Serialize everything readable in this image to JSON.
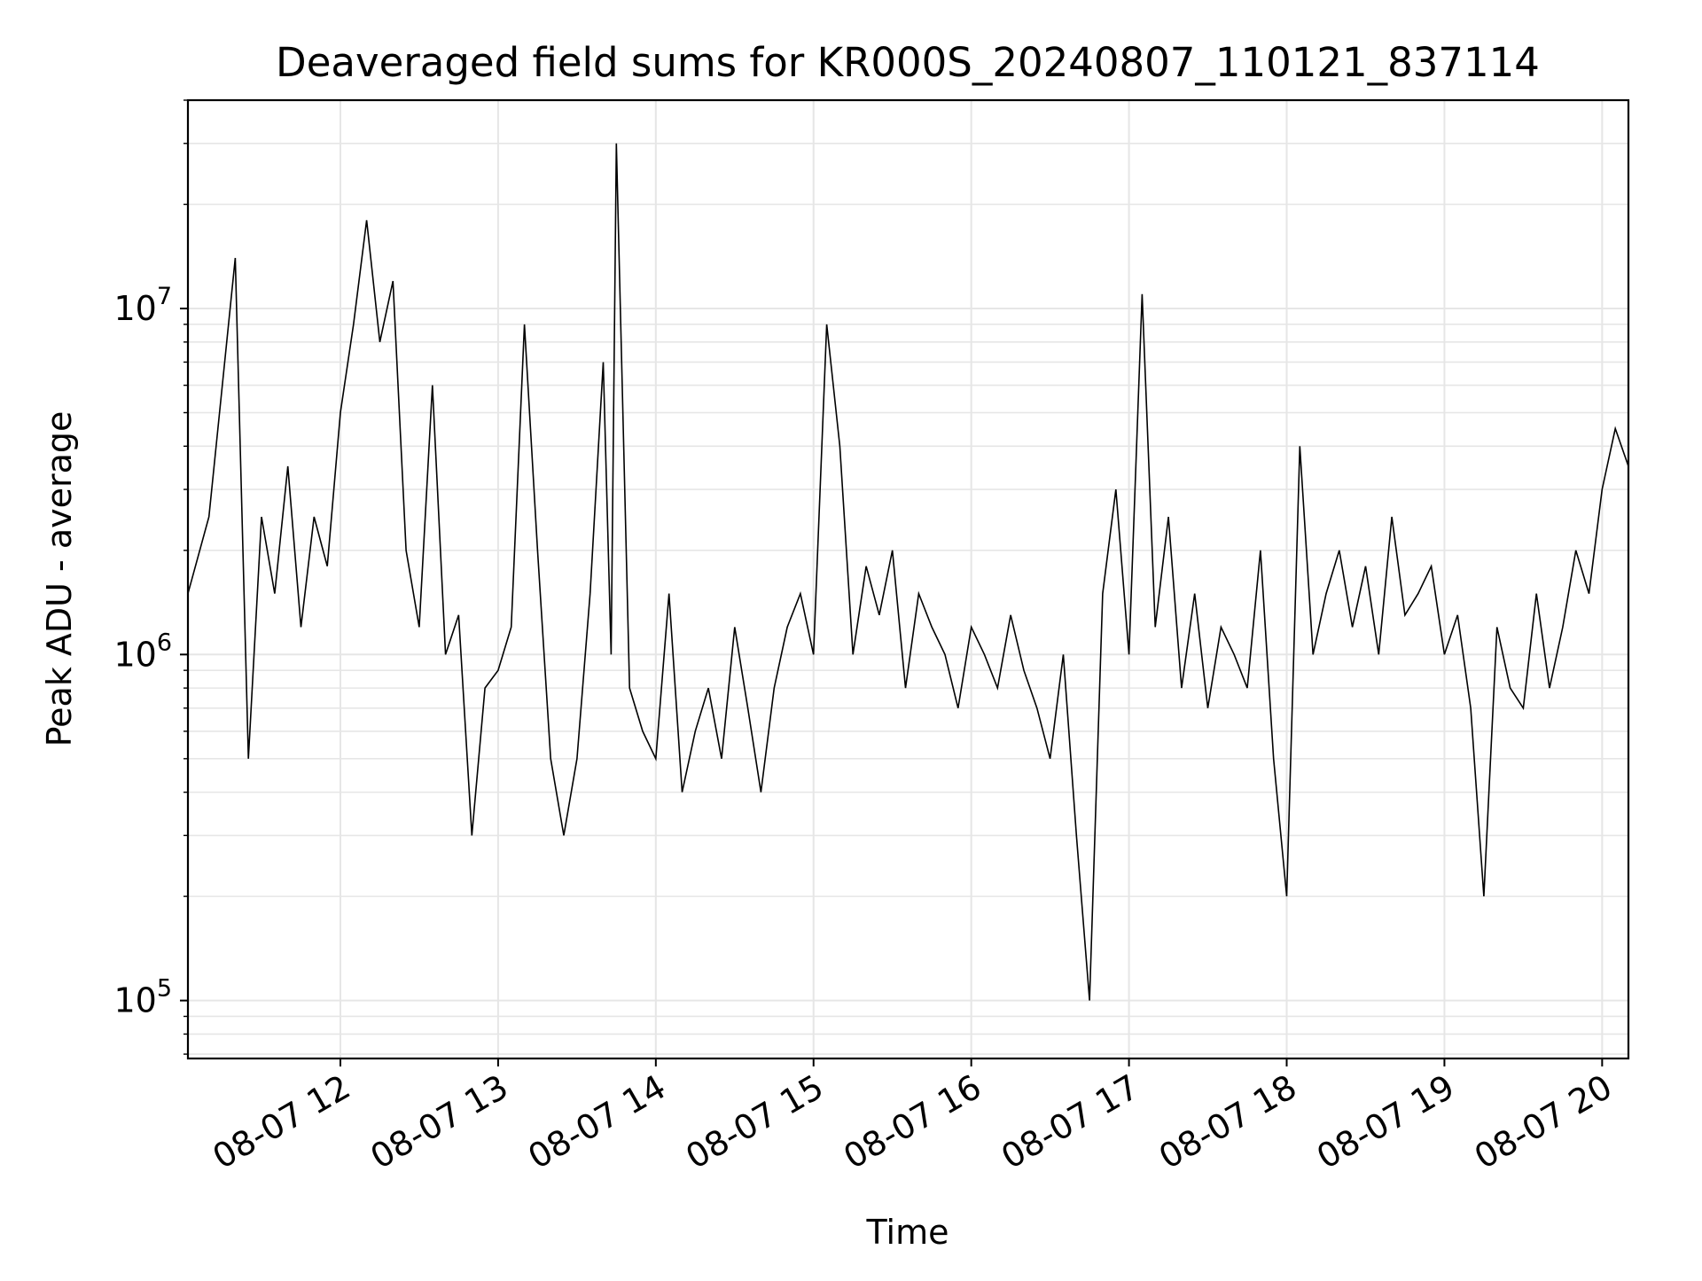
{
  "chart_data": {
    "type": "line",
    "title": "Deaveraged field sums for KR000S_20240807_110121_837114",
    "xlabel": "Time",
    "ylabel": "Peak ADU - average",
    "y_scale": "log",
    "ylim": [
      68000,
      40000000
    ],
    "xlim": [
      "2024-08-07 11:02",
      "2024-08-07 20:10"
    ],
    "grid": true,
    "line_color": "#000000",
    "grid_color": "#e6e6e6",
    "x_ticks": [
      {
        "value": "2024-08-07 12:00",
        "label": "08-07 12"
      },
      {
        "value": "2024-08-07 13:00",
        "label": "08-07 13"
      },
      {
        "value": "2024-08-07 14:00",
        "label": "08-07 14"
      },
      {
        "value": "2024-08-07 15:00",
        "label": "08-07 15"
      },
      {
        "value": "2024-08-07 16:00",
        "label": "08-07 16"
      },
      {
        "value": "2024-08-07 17:00",
        "label": "08-07 17"
      },
      {
        "value": "2024-08-07 18:00",
        "label": "08-07 18"
      },
      {
        "value": "2024-08-07 19:00",
        "label": "08-07 19"
      },
      {
        "value": "2024-08-07 20:00",
        "label": "08-07 20"
      }
    ],
    "y_ticks": [
      {
        "value": 100000,
        "base": "10",
        "exp": "5"
      },
      {
        "value": 1000000,
        "base": "10",
        "exp": "6"
      },
      {
        "value": 10000000,
        "base": "10",
        "exp": "7"
      }
    ],
    "series": [
      {
        "x": [
          "11:02",
          "11:10",
          "11:20",
          "11:25",
          "11:30",
          "11:35",
          "11:40",
          "11:45",
          "11:50",
          "11:55",
          "12:00",
          "12:05",
          "12:10",
          "12:15",
          "12:20",
          "12:25",
          "12:30",
          "12:35",
          "12:40",
          "12:45",
          "12:50",
          "12:55",
          "13:00",
          "13:05",
          "13:10",
          "13:15",
          "13:20",
          "13:25",
          "13:30",
          "13:35",
          "13:40",
          "13:43",
          "13:45",
          "13:50",
          "13:55",
          "14:00",
          "14:05",
          "14:10",
          "14:15",
          "14:20",
          "14:25",
          "14:30",
          "14:35",
          "14:40",
          "14:45",
          "14:50",
          "14:55",
          "15:00",
          "15:05",
          "15:10",
          "15:15",
          "15:20",
          "15:25",
          "15:30",
          "15:35",
          "15:40",
          "15:45",
          "15:50",
          "15:55",
          "16:00",
          "16:05",
          "16:10",
          "16:15",
          "16:20",
          "16:25",
          "16:30",
          "16:35",
          "16:40",
          "16:45",
          "16:50",
          "16:55",
          "17:00",
          "17:05",
          "17:10",
          "17:15",
          "17:20",
          "17:25",
          "17:30",
          "17:35",
          "17:40",
          "17:45",
          "17:50",
          "17:55",
          "18:00",
          "18:05",
          "18:10",
          "18:15",
          "18:20",
          "18:25",
          "18:30",
          "18:35",
          "18:40",
          "18:45",
          "18:50",
          "18:55",
          "19:00",
          "19:05",
          "19:10",
          "19:15",
          "19:20",
          "19:25",
          "19:30",
          "19:35",
          "19:40",
          "19:45",
          "19:50",
          "19:55",
          "20:00",
          "20:05",
          "20:10"
        ],
        "y": [
          1500000,
          2500000,
          14000000,
          500000,
          2500000,
          1500000,
          3500000,
          1200000,
          2500000,
          1800000,
          5000000,
          9000000,
          18000000,
          8000000,
          12000000,
          2000000,
          1200000,
          6000000,
          1000000,
          1300000,
          300000,
          800000,
          900000,
          1200000,
          9000000,
          2000000,
          500000,
          300000,
          500000,
          1500000,
          7000000,
          1000000,
          30000000,
          800000,
          600000,
          500000,
          1500000,
          400000,
          600000,
          800000,
          500000,
          1200000,
          700000,
          400000,
          800000,
          1200000,
          1500000,
          1000000,
          9000000,
          4000000,
          1000000,
          1800000,
          1300000,
          2000000,
          800000,
          1500000,
          1200000,
          1000000,
          700000,
          1200000,
          1000000,
          800000,
          1300000,
          900000,
          700000,
          500000,
          1000000,
          300000,
          100000,
          1500000,
          3000000,
          1000000,
          11000000,
          1200000,
          2500000,
          800000,
          1500000,
          700000,
          1200000,
          1000000,
          800000,
          2000000,
          500000,
          200000,
          4000000,
          1000000,
          1500000,
          2000000,
          1200000,
          1800000,
          1000000,
          2500000,
          1300000,
          1500000,
          1800000,
          1000000,
          1300000,
          700000,
          200000,
          1200000,
          800000,
          700000,
          1500000,
          800000,
          1200000,
          2000000,
          1500000,
          3000000,
          4500000,
          3500000
        ]
      }
    ]
  }
}
